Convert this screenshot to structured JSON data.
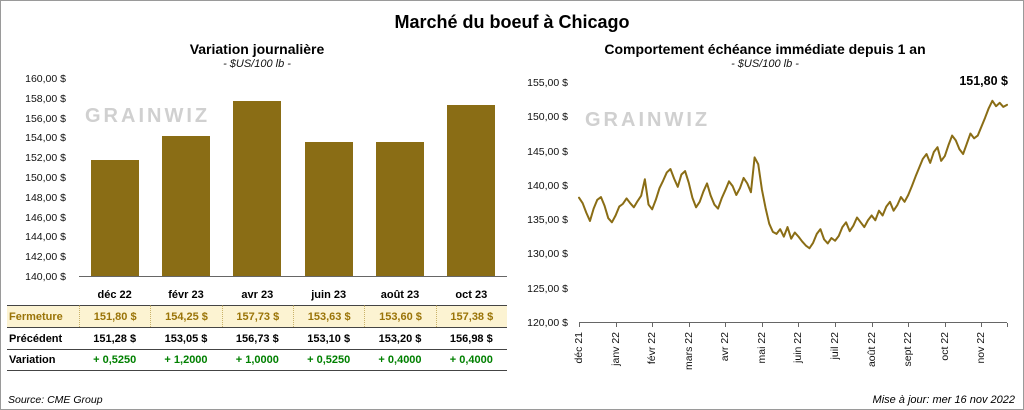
{
  "title": "Marché du boeuf à Chicago",
  "watermark": "GRAINWIZ",
  "source": "Source: CME Group",
  "updated": "Mise à jour: mer 16 nov 2022",
  "colors": {
    "bar": "#8A6D15",
    "line": "#8A6D15",
    "fermeture_bg": "#FCF3D2",
    "fermeture_text": "#9A7408",
    "variation_text": "#008000"
  },
  "left": {
    "title": "Variation journalière",
    "subtitle": "- $US/100 lb -",
    "table": {
      "rows": [
        {
          "label": "Fermeture",
          "values": [
            "151,80 $",
            "154,25 $",
            "157,73 $",
            "153,63 $",
            "153,60 $",
            "157,38 $"
          ]
        },
        {
          "label": "Précédent",
          "values": [
            "151,28 $",
            "153,05 $",
            "156,73 $",
            "153,10 $",
            "153,20 $",
            "156,98 $"
          ]
        },
        {
          "label": "Variation",
          "values": [
            "+ 0,5250",
            "+ 1,2000",
            "+ 1,0000",
            "+ 0,5250",
            "+ 0,4000",
            "+ 0,4000"
          ]
        }
      ]
    }
  },
  "right": {
    "title": "Comportement échéance immédiate depuis 1 an",
    "subtitle": "- $US/100 lb -",
    "annotation": "151,80 $"
  },
  "chart_data": [
    {
      "type": "bar",
      "title": "Variation journalière",
      "categories": [
        "déc 22",
        "févr 23",
        "avr 23",
        "juin 23",
        "août 23",
        "oct 23"
      ],
      "values": [
        151.8,
        154.25,
        157.73,
        153.63,
        153.6,
        157.38
      ],
      "ylim": [
        140,
        160
      ],
      "ytick_step": 2,
      "ytick_labels": [
        "160,00 $",
        "158,00 $",
        "156,00 $",
        "154,00 $",
        "152,00 $",
        "150,00 $",
        "148,00 $",
        "146,00 $",
        "144,00 $",
        "142,00 $",
        "140,00 $"
      ],
      "grid": false,
      "ylabel": "$US/100 lb"
    },
    {
      "type": "line",
      "title": "Comportement échéance immédiate depuis 1 an",
      "x_labels": [
        "déc 21",
        "janv 22",
        "févr 22",
        "mars 22",
        "avr 22",
        "mai 22",
        "juin 22",
        "juil 22",
        "août 22",
        "sept 22",
        "oct 22",
        "nov 22"
      ],
      "points_per_month": 10,
      "values": [
        138.2,
        137.4,
        136.0,
        134.8,
        136.6,
        137.9,
        138.3,
        137.0,
        135.2,
        134.6,
        135.6,
        136.9,
        137.3,
        138.1,
        137.4,
        136.8,
        137.7,
        138.5,
        140.9,
        137.2,
        136.5,
        137.9,
        139.6,
        140.7,
        141.9,
        142.4,
        141.0,
        139.8,
        141.6,
        142.1,
        140.4,
        138.2,
        136.8,
        137.6,
        139.1,
        140.3,
        138.5,
        137.2,
        136.6,
        138.1,
        139.3,
        140.6,
        139.9,
        138.6,
        139.6,
        141.1,
        140.3,
        139.0,
        144.1,
        143.1,
        139.4,
        136.7,
        134.4,
        133.2,
        132.9,
        133.6,
        132.5,
        133.9,
        132.2,
        133.1,
        132.5,
        131.8,
        131.2,
        130.8,
        131.6,
        132.9,
        133.6,
        132.1,
        131.5,
        132.3,
        131.9,
        132.6,
        133.9,
        134.6,
        133.3,
        134.1,
        135.3,
        134.6,
        133.9,
        134.9,
        135.6,
        134.9,
        136.3,
        135.6,
        136.9,
        137.6,
        136.3,
        137.1,
        138.3,
        137.6,
        138.6,
        139.9,
        141.3,
        142.6,
        143.9,
        144.6,
        143.3,
        144.9,
        145.6,
        143.6,
        144.3,
        145.9,
        147.3,
        146.6,
        145.3,
        144.6,
        146.1,
        147.6,
        146.9,
        147.3,
        148.6,
        149.9,
        151.3,
        152.4,
        151.6,
        152.1,
        151.5,
        151.8
      ],
      "ylim": [
        120,
        155
      ],
      "ytick_step": 5,
      "ytick_labels": [
        "155,00 $",
        "150,00 $",
        "145,00 $",
        "140,00 $",
        "135,00 $",
        "130,00 $",
        "125,00 $",
        "120,00 $"
      ],
      "grid": false,
      "annotation": {
        "text": "151,80 $",
        "value": 151.8
      },
      "legend": "none"
    }
  ]
}
